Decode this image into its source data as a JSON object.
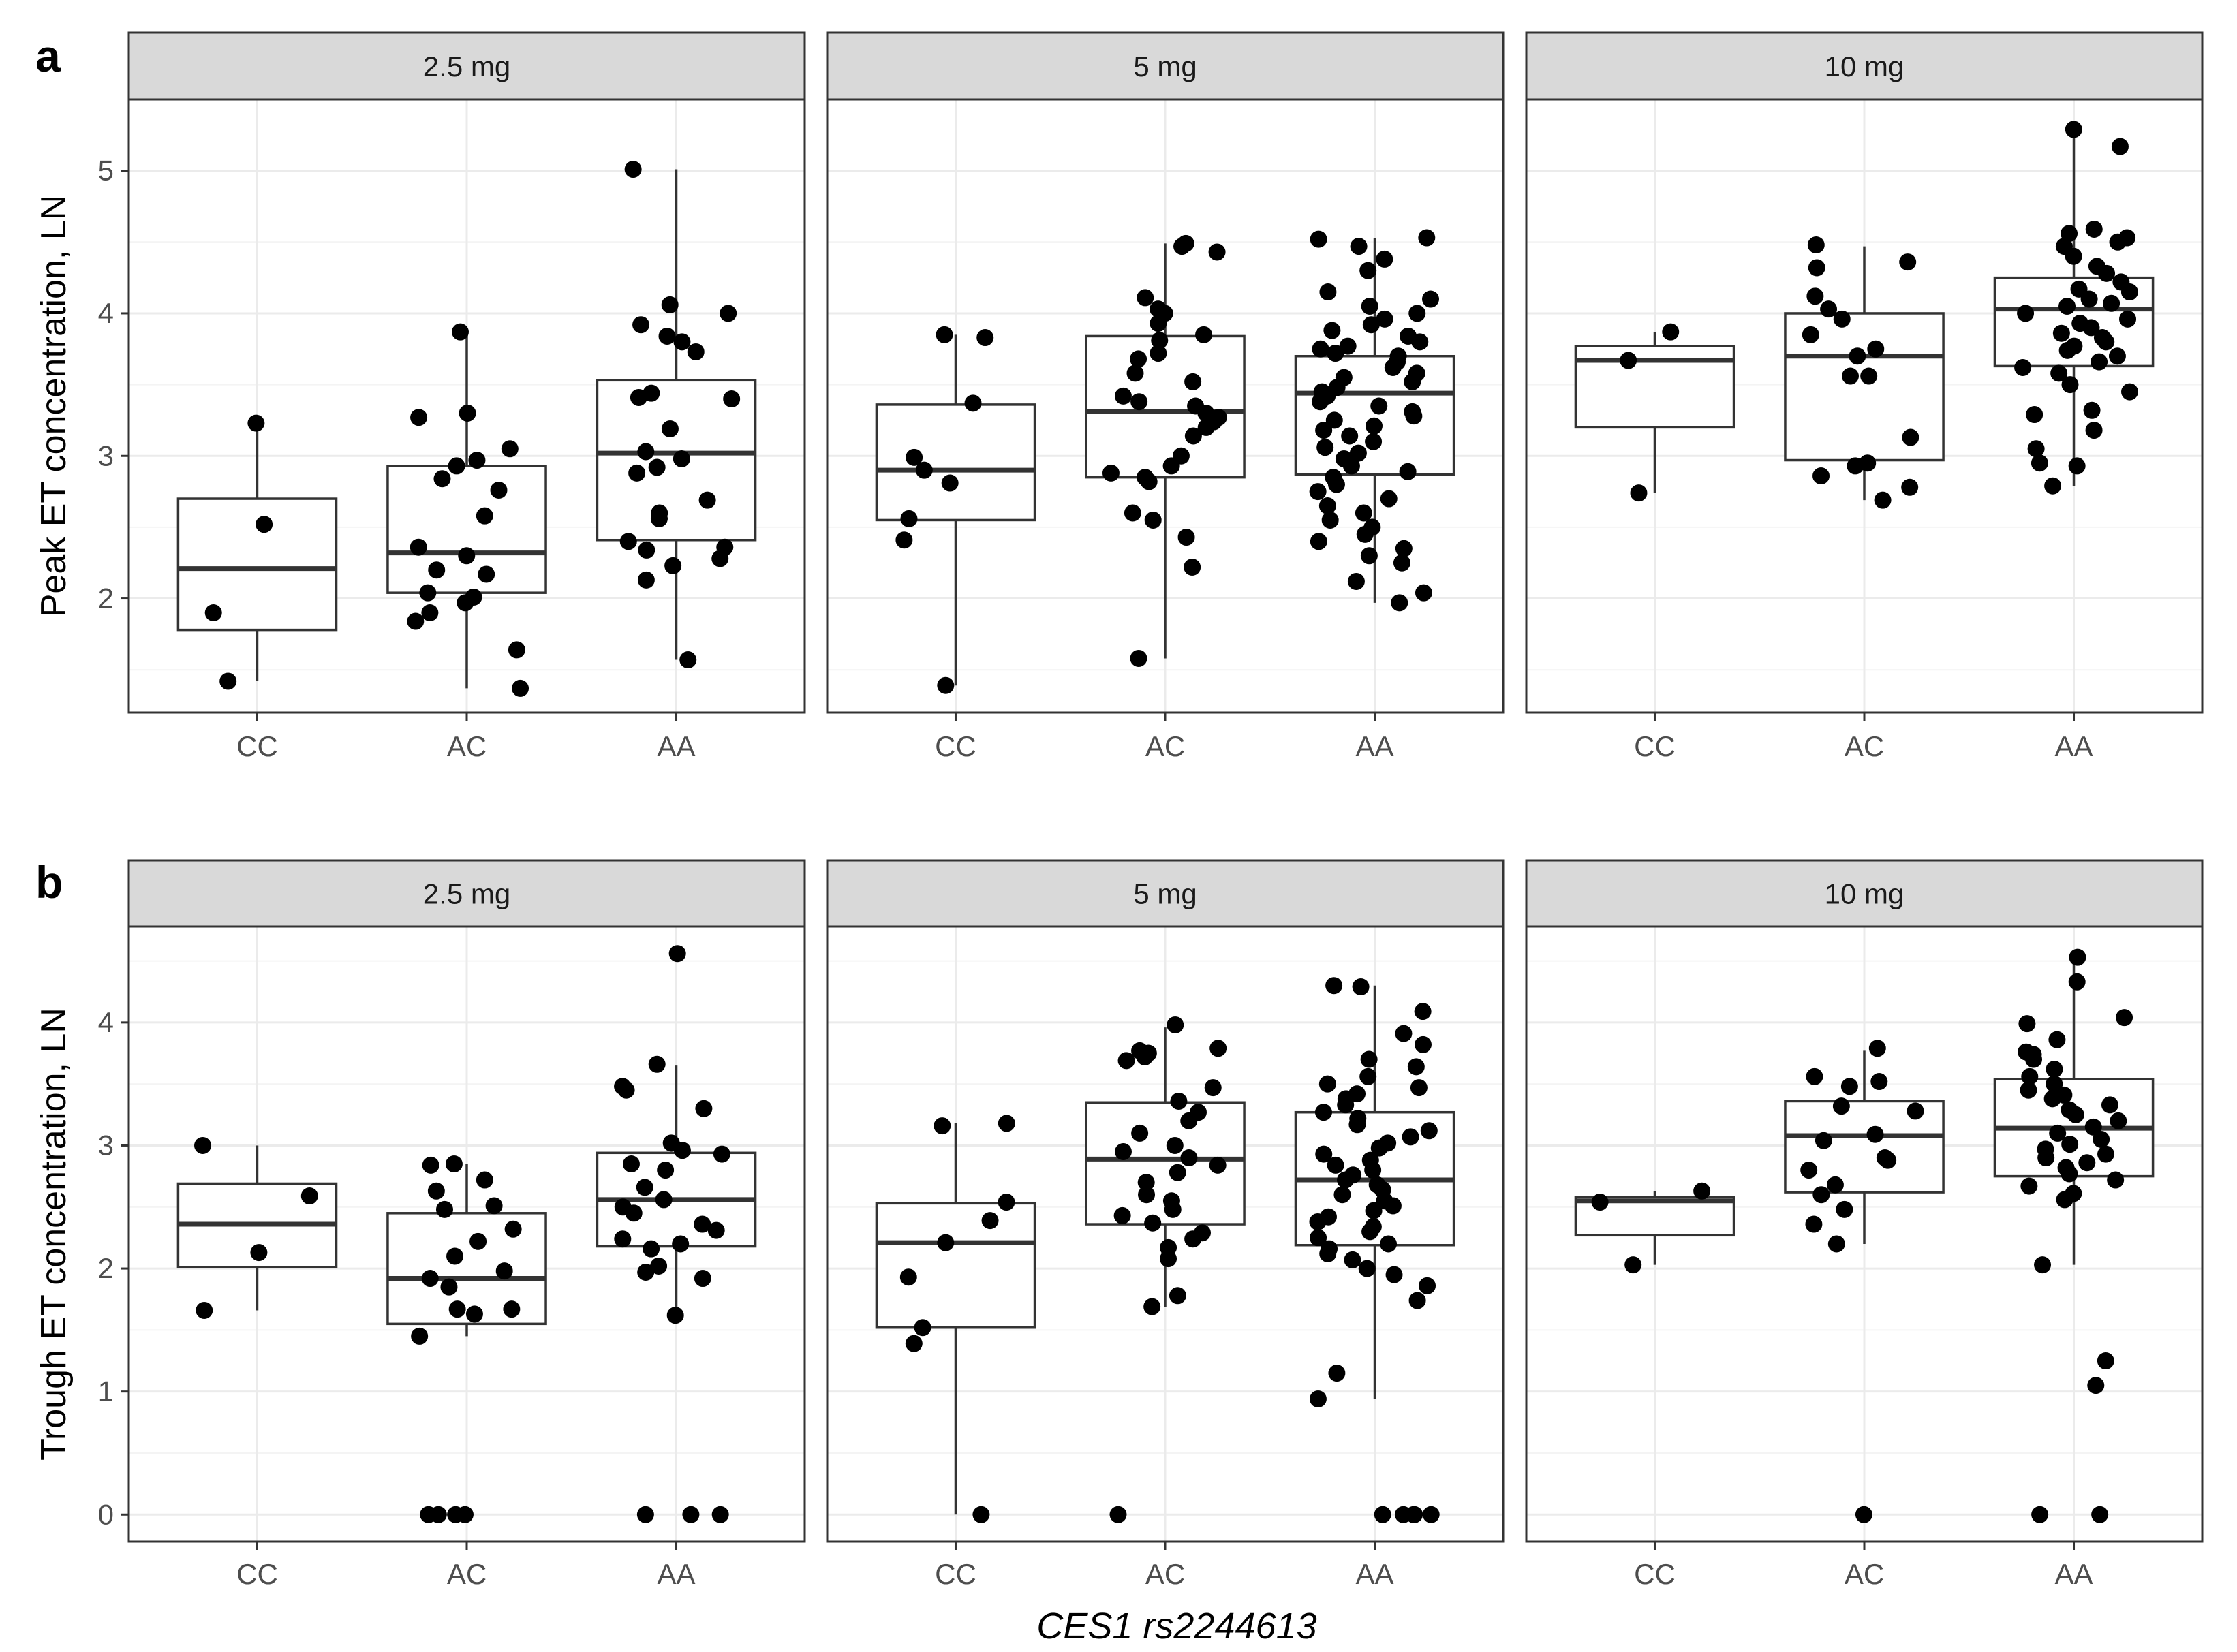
{
  "colors": {
    "point": "#000000",
    "box_stroke": "#333333",
    "median": "#333333",
    "strip_fill": "#d9d9d9",
    "strip_border": "#333333",
    "panel_border": "#333333",
    "grid_major": "#ebebeb",
    "grid_minor": "#f4f4f4",
    "tick_text": "#4d4d4d"
  },
  "chart_data": [
    {
      "type": "boxplot",
      "panel_letter": "a",
      "ylabel": "Peak ET concentration, LN",
      "xlabel": "",
      "ylim": [
        1.2,
        5.5
      ],
      "yticks": [
        2,
        3,
        4,
        5
      ],
      "categories": [
        "CC",
        "AC",
        "AA"
      ],
      "facets": [
        {
          "label": "2.5 mg",
          "groups": [
            {
              "category": "CC",
              "box": {
                "q1": 1.78,
                "median": 2.21,
                "q3": 2.7,
                "whisker_low": 1.42,
                "whisker_high": 3.23
              },
              "points": [
                3.23,
                2.52,
                1.9,
                1.42
              ]
            },
            {
              "category": "AC",
              "box": {
                "q1": 2.04,
                "median": 2.32,
                "q3": 2.93,
                "whisker_low": 1.37,
                "whisker_high": 3.87
              },
              "points": [
                3.87,
                3.3,
                3.27,
                3.05,
                2.97,
                2.93,
                2.84,
                2.76,
                2.58,
                2.36,
                2.3,
                2.2,
                2.17,
                2.04,
                2.01,
                1.97,
                1.9,
                1.84,
                1.64,
                1.37
              ]
            },
            {
              "category": "AA",
              "box": {
                "q1": 2.41,
                "median": 3.02,
                "q3": 3.53,
                "whisker_low": 1.57,
                "whisker_high": 5.01
              },
              "points": [
                5.01,
                4.06,
                4.0,
                3.92,
                3.84,
                3.8,
                3.73,
                3.44,
                3.41,
                3.4,
                3.19,
                3.03,
                2.98,
                2.92,
                2.88,
                2.69,
                2.6,
                2.56,
                2.4,
                2.36,
                2.34,
                2.28,
                2.23,
                2.13,
                1.57
              ]
            }
          ]
        },
        {
          "label": "5 mg",
          "groups": [
            {
              "category": "CC",
              "box": {
                "q1": 2.55,
                "median": 2.9,
                "q3": 3.36,
                "whisker_low": 1.39,
                "whisker_high": 3.85
              },
              "points": [
                3.85,
                3.83,
                3.37,
                2.99,
                2.9,
                2.81,
                2.56,
                2.41,
                1.39
              ]
            },
            {
              "category": "AC",
              "box": {
                "q1": 2.85,
                "median": 3.31,
                "q3": 3.84,
                "whisker_low": 1.58,
                "whisker_high": 4.49
              },
              "points": [
                4.49,
                4.47,
                4.43,
                4.11,
                4.03,
                4.0,
                3.93,
                3.85,
                3.81,
                3.72,
                3.68,
                3.58,
                3.52,
                3.42,
                3.38,
                3.35,
                3.3,
                3.27,
                3.24,
                3.2,
                3.14,
                3.0,
                2.93,
                2.88,
                2.85,
                2.82,
                2.6,
                2.55,
                2.43,
                2.22,
                1.58
              ]
            },
            {
              "category": "AA",
              "box": {
                "q1": 2.87,
                "median": 3.44,
                "q3": 3.7,
                "whisker_low": 1.97,
                "whisker_high": 4.53
              },
              "points": [
                4.53,
                4.52,
                4.47,
                4.38,
                4.3,
                4.15,
                4.1,
                4.05,
                4.0,
                3.96,
                3.92,
                3.88,
                3.84,
                3.8,
                3.77,
                3.75,
                3.72,
                3.7,
                3.66,
                3.62,
                3.58,
                3.55,
                3.52,
                3.48,
                3.45,
                3.42,
                3.38,
                3.35,
                3.31,
                3.28,
                3.25,
                3.21,
                3.18,
                3.14,
                3.1,
                3.06,
                3.02,
                2.98,
                2.93,
                2.89,
                2.85,
                2.8,
                2.75,
                2.7,
                2.65,
                2.6,
                2.55,
                2.5,
                2.45,
                2.4,
                2.35,
                2.3,
                2.25,
                2.12,
                2.04,
                1.97
              ]
            }
          ]
        },
        {
          "label": "10 mg",
          "groups": [
            {
              "category": "CC",
              "box": {
                "q1": 3.2,
                "median": 3.67,
                "q3": 3.77,
                "whisker_low": 2.74,
                "whisker_high": 3.87
              },
              "points": [
                3.87,
                3.67,
                2.74
              ]
            },
            {
              "category": "AC",
              "box": {
                "q1": 2.97,
                "median": 3.7,
                "q3": 4.0,
                "whisker_low": 2.69,
                "whisker_high": 4.47
              },
              "points": [
                4.48,
                4.36,
                4.32,
                4.12,
                4.03,
                3.96,
                3.85,
                3.75,
                3.7,
                3.56,
                3.56,
                3.13,
                2.95,
                2.93,
                2.86,
                2.78,
                2.69
              ]
            },
            {
              "category": "AA",
              "box": {
                "q1": 3.63,
                "median": 4.03,
                "q3": 4.25,
                "whisker_low": 2.79,
                "whisker_high": 5.29
              },
              "points": [
                5.29,
                5.17,
                4.59,
                4.56,
                4.53,
                4.5,
                4.47,
                4.4,
                4.33,
                4.28,
                4.22,
                4.17,
                4.15,
                4.1,
                4.07,
                4.05,
                4.0,
                3.96,
                3.93,
                3.9,
                3.86,
                3.83,
                3.8,
                3.77,
                3.74,
                3.7,
                3.66,
                3.62,
                3.58,
                3.5,
                3.45,
                3.32,
                3.29,
                3.18,
                3.05,
                2.95,
                2.93,
                2.79
              ]
            }
          ]
        }
      ]
    },
    {
      "type": "boxplot",
      "panel_letter": "b",
      "ylabel": "Trough ET concentration, LN",
      "xlabel": "CES1 rs2244613",
      "ylim": [
        -0.22,
        4.78
      ],
      "yticks": [
        0,
        1,
        2,
        3,
        4
      ],
      "categories": [
        "CC",
        "AC",
        "AA"
      ],
      "facets": [
        {
          "label": "2.5 mg",
          "groups": [
            {
              "category": "CC",
              "box": {
                "q1": 2.01,
                "median": 2.36,
                "q3": 2.69,
                "whisker_low": 1.66,
                "whisker_high": 3.0
              },
              "points": [
                3.0,
                2.59,
                2.13,
                1.66
              ]
            },
            {
              "category": "AC",
              "box": {
                "q1": 1.55,
                "median": 1.92,
                "q3": 2.45,
                "whisker_low": 1.45,
                "whisker_high": 2.85
              },
              "points": [
                2.85,
                2.84,
                2.72,
                2.63,
                2.51,
                2.48,
                2.32,
                2.22,
                2.1,
                1.98,
                1.92,
                1.85,
                1.67,
                1.67,
                1.63,
                1.45,
                0,
                0,
                0,
                0
              ]
            },
            {
              "category": "AA",
              "box": {
                "q1": 2.18,
                "median": 2.56,
                "q3": 2.94,
                "whisker_low": 1.62,
                "whisker_high": 3.65
              },
              "points": [
                4.56,
                3.66,
                3.48,
                3.45,
                3.3,
                3.02,
                2.96,
                2.93,
                2.85,
                2.8,
                2.66,
                2.56,
                2.5,
                2.45,
                2.36,
                2.31,
                2.24,
                2.2,
                2.16,
                2.02,
                1.97,
                1.92,
                1.62,
                0,
                0,
                0
              ]
            }
          ]
        },
        {
          "label": "5 mg",
          "groups": [
            {
              "category": "CC",
              "box": {
                "q1": 1.52,
                "median": 2.21,
                "q3": 2.53,
                "whisker_low": 0,
                "whisker_high": 3.18
              },
              "points": [
                3.18,
                3.16,
                2.54,
                2.39,
                2.21,
                1.93,
                1.52,
                1.39,
                0
              ]
            },
            {
              "category": "AC",
              "box": {
                "q1": 2.36,
                "median": 2.89,
                "q3": 3.35,
                "whisker_low": 1.69,
                "whisker_high": 3.96
              },
              "points": [
                3.98,
                3.79,
                3.77,
                3.75,
                3.72,
                3.69,
                3.47,
                3.36,
                3.27,
                3.2,
                3.1,
                3.0,
                2.95,
                2.9,
                2.84,
                2.78,
                2.7,
                2.6,
                2.55,
                2.48,
                2.43,
                2.37,
                2.29,
                2.24,
                2.17,
                2.08,
                1.78,
                1.69,
                0
              ]
            },
            {
              "category": "AA",
              "box": {
                "q1": 2.19,
                "median": 2.72,
                "q3": 3.27,
                "whisker_low": 0.94,
                "whisker_high": 4.3
              },
              "points": [
                4.3,
                4.29,
                4.09,
                3.91,
                3.82,
                3.7,
                3.64,
                3.56,
                3.5,
                3.47,
                3.42,
                3.38,
                3.33,
                3.27,
                3.22,
                3.17,
                3.12,
                3.07,
                3.02,
                2.98,
                2.93,
                2.88,
                2.84,
                2.8,
                2.76,
                2.72,
                2.68,
                2.64,
                2.6,
                2.55,
                2.51,
                2.47,
                2.42,
                2.38,
                2.34,
                2.3,
                2.25,
                2.2,
                2.16,
                2.12,
                2.07,
                2.0,
                1.95,
                1.86,
                1.74,
                1.15,
                0.94,
                0,
                0,
                0,
                0,
                0
              ]
            }
          ]
        },
        {
          "label": "10 mg",
          "groups": [
            {
              "category": "CC",
              "box": {
                "q1": 2.27,
                "median": 2.55,
                "q3": 2.58,
                "whisker_low": 2.03,
                "whisker_high": 2.63
              },
              "points": [
                2.63,
                2.54,
                2.03
              ]
            },
            {
              "category": "AC",
              "box": {
                "q1": 2.62,
                "median": 3.08,
                "q3": 3.36,
                "whisker_low": 2.2,
                "whisker_high": 3.77
              },
              "points": [
                3.79,
                3.56,
                3.52,
                3.48,
                3.32,
                3.28,
                3.09,
                3.04,
                2.9,
                2.88,
                2.8,
                2.68,
                2.6,
                2.48,
                2.36,
                2.2,
                0
              ]
            },
            {
              "category": "AA",
              "box": {
                "q1": 2.75,
                "median": 3.14,
                "q3": 3.54,
                "whisker_low": 2.03,
                "whisker_high": 4.53
              },
              "points": [
                4.53,
                4.33,
                4.04,
                3.99,
                3.86,
                3.76,
                3.74,
                3.7,
                3.62,
                3.56,
                3.5,
                3.45,
                3.41,
                3.38,
                3.33,
                3.29,
                3.25,
                3.2,
                3.15,
                3.1,
                3.05,
                3.01,
                2.97,
                2.93,
                2.9,
                2.86,
                2.82,
                2.77,
                2.72,
                2.67,
                2.61,
                2.56,
                2.03,
                1.25,
                1.05,
                0,
                0
              ]
            }
          ]
        }
      ]
    }
  ]
}
